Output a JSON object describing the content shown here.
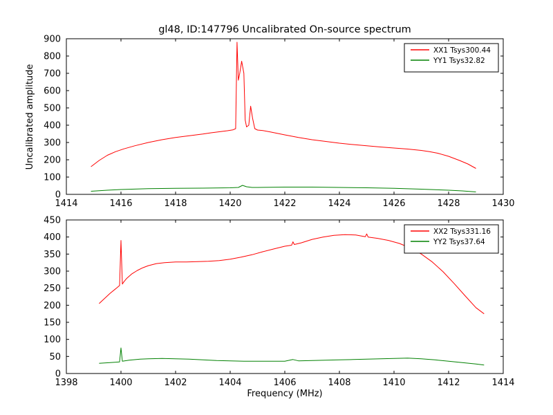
{
  "figure": {
    "title": "gl48, ID:147796 Uncalibrated On-source spectrum",
    "xlabel": "Frequency (MHz)",
    "ylabel": "Uncalibrated amplitude",
    "background": "#ffffff",
    "axes_color": "#000000"
  },
  "chart_data": [
    {
      "type": "line",
      "name": "top-spectrum-plot",
      "title": "gl48, ID:147796 Uncalibrated On-source spectrum",
      "ylabel": "Uncalibrated amplitude",
      "xlim": [
        1414,
        1430
      ],
      "ylim": [
        0,
        900
      ],
      "xticks": [
        1414,
        1416,
        1418,
        1420,
        1422,
        1424,
        1426,
        1428,
        1430
      ],
      "yticks": [
        0,
        100,
        200,
        300,
        400,
        500,
        600,
        700,
        800,
        900
      ],
      "grid": false,
      "legend_position": "upper right",
      "series": [
        {
          "name": "XX1 Tsys300.44",
          "color": "#ff0000",
          "x": [
            1414.9,
            1415.2,
            1415.5,
            1415.8,
            1416.1,
            1416.5,
            1417,
            1417.5,
            1418,
            1418.5,
            1419,
            1419.3,
            1419.6,
            1419.9,
            1420.1,
            1420.2,
            1420.25,
            1420.3,
            1420.35,
            1420.42,
            1420.5,
            1420.55,
            1420.6,
            1420.68,
            1420.75,
            1420.82,
            1420.9,
            1421,
            1421.2,
            1421.5,
            1422,
            1422.5,
            1423,
            1423.5,
            1424,
            1424.5,
            1425,
            1425.5,
            1426,
            1426.5,
            1427,
            1427.3,
            1427.6,
            1428,
            1428.4,
            1428.7,
            1429
          ],
          "y": [
            160,
            196,
            226,
            247,
            263,
            281,
            300,
            316,
            329,
            339,
            349,
            356,
            362,
            368,
            373,
            380,
            880,
            660,
            700,
            770,
            700,
            430,
            390,
            400,
            510,
            440,
            380,
            372,
            369,
            360,
            344,
            329,
            316,
            306,
            296,
            288,
            281,
            274,
            268,
            262,
            254,
            247,
            238,
            220,
            196,
            176,
            150
          ]
        },
        {
          "name": "YY1 Tsys32.82",
          "color": "#008000",
          "x": [
            1414.9,
            1415.5,
            1416,
            1417,
            1418,
            1419,
            1420,
            1420.3,
            1420.45,
            1420.6,
            1420.8,
            1421,
            1421.5,
            1422,
            1423,
            1424,
            1425,
            1426,
            1427,
            1428,
            1428.5,
            1429
          ],
          "y": [
            18,
            24,
            28,
            33,
            35,
            36,
            38,
            40,
            52,
            44,
            40,
            40,
            41,
            42,
            42,
            40,
            38,
            35,
            30,
            24,
            20,
            14
          ]
        }
      ]
    },
    {
      "type": "line",
      "name": "bottom-spectrum-plot",
      "xlabel": "Frequency (MHz)",
      "xlim": [
        1398,
        1414
      ],
      "ylim": [
        0,
        450
      ],
      "xticks": [
        1398,
        1400,
        1402,
        1404,
        1406,
        1408,
        1410,
        1412,
        1414
      ],
      "yticks": [
        0,
        50,
        100,
        150,
        200,
        250,
        300,
        350,
        400,
        450
      ],
      "grid": false,
      "legend_position": "upper right",
      "series": [
        {
          "name": "XX2 Tsys331.16",
          "color": "#ff0000",
          "x": [
            1399.2,
            1399.4,
            1399.6,
            1399.8,
            1399.95,
            1400.0,
            1400.05,
            1400.1,
            1400.2,
            1400.4,
            1400.6,
            1400.8,
            1401,
            1401.3,
            1401.6,
            1402,
            1402.4,
            1402.8,
            1403.2,
            1403.6,
            1404,
            1404.4,
            1404.8,
            1405.2,
            1405.6,
            1406,
            1406.25,
            1406.3,
            1406.35,
            1406.6,
            1407,
            1407.4,
            1407.8,
            1408.2,
            1408.6,
            1408.95,
            1409,
            1409.05,
            1409.4,
            1409.8,
            1410.2,
            1410.6,
            1411,
            1411.4,
            1411.8,
            1412.2,
            1412.6,
            1413,
            1413.3
          ],
          "y": [
            205,
            220,
            235,
            248,
            258,
            390,
            262,
            268,
            278,
            292,
            302,
            310,
            316,
            322,
            325,
            327,
            327,
            328,
            329,
            331,
            335,
            341,
            348,
            357,
            365,
            373,
            376,
            386,
            378,
            383,
            393,
            400,
            405,
            407,
            406,
            401,
            409,
            400,
            396,
            390,
            381,
            368,
            350,
            327,
            298,
            264,
            228,
            193,
            175
          ]
        },
        {
          "name": "YY2 Tsys37.64",
          "color": "#008000",
          "x": [
            1399.2,
            1399.6,
            1399.95,
            1400.0,
            1400.05,
            1400.3,
            1400.7,
            1401,
            1401.5,
            1402,
            1402.5,
            1403,
            1403.5,
            1404,
            1404.5,
            1405,
            1405.5,
            1406,
            1406.3,
            1406.5,
            1407,
            1407.5,
            1408,
            1408.5,
            1409,
            1409.5,
            1410,
            1410.5,
            1411,
            1411.5,
            1412,
            1412.5,
            1413,
            1413.3
          ],
          "y": [
            30,
            32,
            34,
            75,
            36,
            39,
            42,
            43,
            44,
            43,
            42,
            40,
            38,
            37,
            36,
            36,
            36,
            36,
            41,
            37,
            38,
            39,
            40,
            41,
            42,
            43,
            44,
            45,
            43,
            40,
            36,
            32,
            28,
            25
          ]
        }
      ]
    }
  ]
}
